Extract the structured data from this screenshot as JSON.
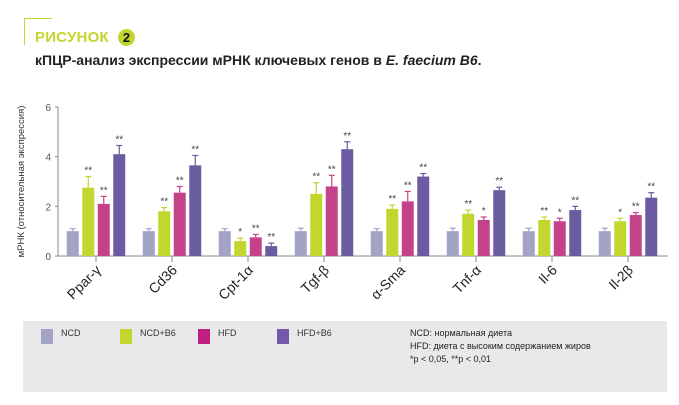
{
  "header": {
    "figure_label": "РИСУНОК",
    "figure_number": "2",
    "title_prefix": "кПЦР-анализ экспрессии мРНК ключевых генов в ",
    "title_italic": "E. faecium B6",
    "title_suffix": "."
  },
  "chart_data": {
    "type": "bar",
    "title": "",
    "xlabel": "",
    "ylabel": "мРНК (относительная экспрессия)",
    "ylim": [
      0,
      6
    ],
    "yticks": [
      "0",
      "2",
      "4",
      "6"
    ],
    "grid": false,
    "legend_placement": "bottom",
    "categories": [
      "Ppar-γ",
      "Cd36",
      "Cpt-1α",
      "Tgf-β",
      "α-Sma",
      "Tnf-α",
      "Il-6",
      "Il-2β"
    ],
    "series": [
      {
        "name": "NCD",
        "color": "#a3a3c8",
        "values": [
          1,
          1,
          1,
          1,
          1,
          1,
          1,
          1
        ],
        "errors": [
          0.1,
          0.1,
          0.1,
          0.12,
          0.1,
          0.12,
          0.12,
          0.12
        ],
        "significance": [
          "",
          "",
          "",
          "",
          "",
          "",
          "",
          ""
        ]
      },
      {
        "name": "NCD+B6",
        "color": "#c2d62e",
        "values": [
          2.75,
          1.8,
          0.6,
          2.5,
          1.9,
          1.7,
          1.45,
          1.4
        ],
        "errors": [
          0.45,
          0.15,
          0.12,
          0.45,
          0.15,
          0.15,
          0.12,
          0.12
        ],
        "significance": [
          "**",
          "**",
          "*",
          "**",
          "**",
          "**",
          "**",
          "*"
        ]
      },
      {
        "name": "HFD",
        "color": "#c4428a",
        "values": [
          2.1,
          2.55,
          0.75,
          2.8,
          2.2,
          1.45,
          1.4,
          1.65
        ],
        "errors": [
          0.3,
          0.25,
          0.12,
          0.45,
          0.4,
          0.12,
          0.12,
          0.1
        ],
        "significance": [
          "**",
          "**",
          "**",
          "**",
          "**",
          "*",
          "*",
          "**"
        ]
      },
      {
        "name": "HFD+B6",
        "color": "#6b5ba0",
        "values": [
          4.1,
          3.65,
          0.4,
          4.3,
          3.2,
          2.65,
          1.85,
          2.35
        ],
        "errors": [
          0.35,
          0.4,
          0.12,
          0.3,
          0.12,
          0.12,
          0.15,
          0.2
        ],
        "significance": [
          "**",
          "**",
          "**",
          "**",
          "**",
          "**",
          "**",
          "**"
        ]
      }
    ]
  },
  "legend": {
    "items": [
      "NCD",
      "NCD+B6",
      "HFD",
      "HFD+B6"
    ],
    "notes": [
      "NCD: нормальная диета",
      "HFD: диета с высоким содержанием жиров",
      "*p < 0,05, **p < 0,01"
    ]
  }
}
